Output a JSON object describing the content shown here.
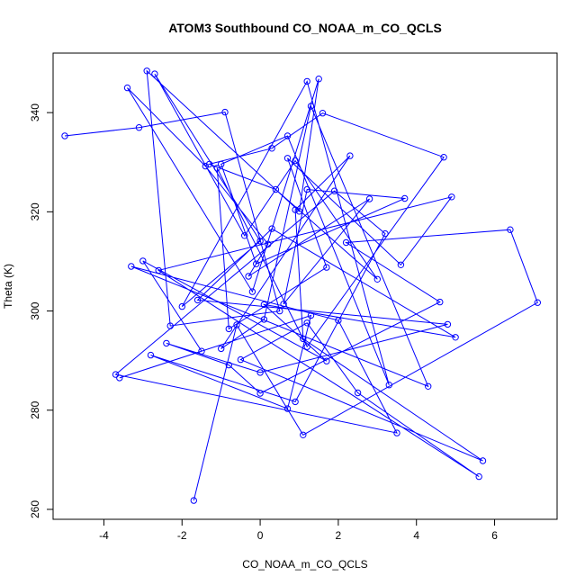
{
  "chart_data": {
    "type": "line",
    "title": "ATOM3 Southbound CO_NOAA_m_CO_QCLS",
    "xlabel": "CO_NOAA_m_CO_QCLS",
    "ylabel": "Theta (K)",
    "xlim": [
      -5.3,
      7.6
    ],
    "ylim": [
      258,
      352
    ],
    "xticks": [
      -4,
      -2,
      0,
      2,
      4,
      6
    ],
    "yticks": [
      260,
      280,
      300,
      320,
      340
    ],
    "xtick_labels": [
      "-4",
      "-2",
      "0",
      "2",
      "4",
      "6"
    ],
    "ytick_labels": [
      "260",
      "280",
      "300",
      "320",
      "340"
    ],
    "grid": false,
    "legend": "none",
    "colors": {
      "series": "#0000ff",
      "axes": "#000000",
      "background": "#ffffff"
    },
    "series": [
      {
        "markers": "open-circle",
        "x": [
          -5.0,
          -3.1,
          -0.9,
          0.5,
          -2.3,
          -2.9,
          1.0,
          1.5,
          -0.2,
          -3.4,
          -1.4,
          0.2,
          -0.3,
          2.8,
          0.6,
          1.2,
          3.7,
          -0.1,
          -1.0,
          0.7,
          3.3,
          1.2,
          -2.0,
          0.0,
          -2.7,
          -0.4,
          0.9,
          3.0,
          0.4,
          -1.3,
          0.3,
          1.6,
          4.7,
          1.2,
          -1.1,
          -0.8,
          1.7,
          0.7,
          3.6,
          4.9,
          -2.6,
          5.6,
          2.5,
          1.2,
          -0.5,
          5.7,
          1.1,
          0.9,
          2.3,
          -1.0,
          0.1,
          1.3,
          4.3,
          -3.3,
          2.0,
          3.5,
          -3.7,
          1.9,
          3.2,
          0.9,
          -2.8,
          0.7,
          1.3,
          -3.6,
          -1.5,
          -3.0,
          1.7,
          0.1,
          5.0,
          0.3,
          -1.6,
          4.8,
          0.0,
          -2.4,
          -0.8,
          0.0,
          4.6,
          2.2,
          6.4,
          7.1,
          1.1,
          -0.6,
          -1.7
        ],
        "y": [
          335.3,
          337.0,
          340.1,
          300.0,
          297.0,
          348.4,
          320.1,
          346.8,
          303.9,
          345.0,
          329.2,
          313.5,
          307.0,
          322.6,
          301.4,
          324.5,
          322.7,
          309.5,
          329.6,
          335.3,
          285.1,
          346.3,
          300.9,
          314.1,
          347.8,
          315.2,
          330.3,
          306.4,
          324.5,
          329.6,
          332.8,
          339.9,
          331.0,
          292.8,
          328.8,
          296.4,
          308.8,
          330.8,
          309.3,
          323.0,
          308.2,
          266.6,
          283.5,
          297.6,
          290.2,
          269.8,
          294.4,
          320.4,
          331.3,
          292.4,
          298.3,
          341.3,
          284.8,
          309.0,
          298.1,
          275.4,
          287.2,
          324.2,
          315.6,
          281.7,
          291.1,
          280.3,
          299.1,
          286.5,
          291.9,
          310.1,
          289.9,
          301.3,
          294.7,
          316.6,
          302.2,
          297.3,
          287.6,
          293.5,
          289.1,
          283.4,
          301.8,
          313.8,
          316.4,
          301.7,
          275.0,
          297.2,
          261.8
        ]
      }
    ]
  }
}
